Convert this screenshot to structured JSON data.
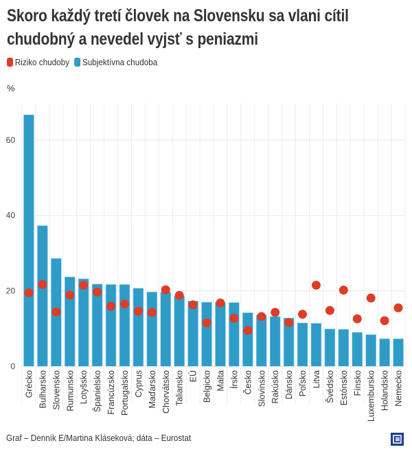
{
  "title": "Skoro každý tretí človek na Slovensku sa vlani cítil chudobný a nevedel vyjsť s peniazmi",
  "title_lines": [
    "Skoro každý tretí človek na Slovensku sa vlani cítil",
    "chudobný a nevedel vyjsť s peniazmi"
  ],
  "footer": "Graf – Denník E/Martina Kláseková; dáta – Eurostat",
  "logo_text": "E",
  "chart_data": {
    "type": "bar",
    "title": "Skoro každý tretí človek na Slovensku sa vlani cítil chudobný a nevedel vyjsť s peniazmi",
    "ylabel": "%",
    "xlabel": "",
    "ylim": [
      0,
      68
    ],
    "yticks": [
      0,
      20,
      40,
      60
    ],
    "grid": true,
    "legend_position": "top-left",
    "categories": [
      "Grécko",
      "Bulharsko",
      "Slovensko",
      "Rumunsko",
      "Lotyšsko",
      "Španielsko",
      "Francúzsko",
      "Portugalsko",
      "Cyprus",
      "Maďarsko",
      "Chorvátsko",
      "Taliansko",
      "EÚ",
      "Belgicko",
      "Malta",
      "Írsko",
      "Česko",
      "Slovinsko",
      "Rakúsko",
      "Dánsko",
      "Poľsko",
      "Litva",
      "Švédsko",
      "Estónsko",
      "Fínsko",
      "Luxembursko",
      "Holandsko",
      "Nemecko"
    ],
    "series": [
      {
        "name": "Riziko chudoby",
        "mark": "dot",
        "color": "#e03c26",
        "values": [
          19.5,
          21.7,
          14.4,
          18.9,
          21.5,
          19.7,
          15.9,
          16.5,
          14.6,
          14.3,
          20.3,
          18.8,
          16.3,
          11.5,
          16.8,
          12.7,
          9.5,
          13.2,
          14.3,
          11.6,
          13.8,
          21.5,
          14.8,
          20.2,
          12.6,
          18.1,
          12.1,
          15.5
        ]
      },
      {
        "name": "Subjektívna chudoba",
        "mark": "bar",
        "color": "#2f9cc8",
        "values": [
          66.7,
          37.3,
          28.6,
          23.7,
          23.2,
          21.8,
          21.7,
          21.7,
          20.7,
          19.7,
          19.7,
          18.6,
          17.3,
          17.0,
          16.9,
          16.9,
          14.2,
          13.6,
          13.2,
          12.8,
          11.5,
          11.4,
          9.9,
          9.8,
          9.0,
          8.4,
          7.3,
          7.3
        ]
      }
    ]
  }
}
